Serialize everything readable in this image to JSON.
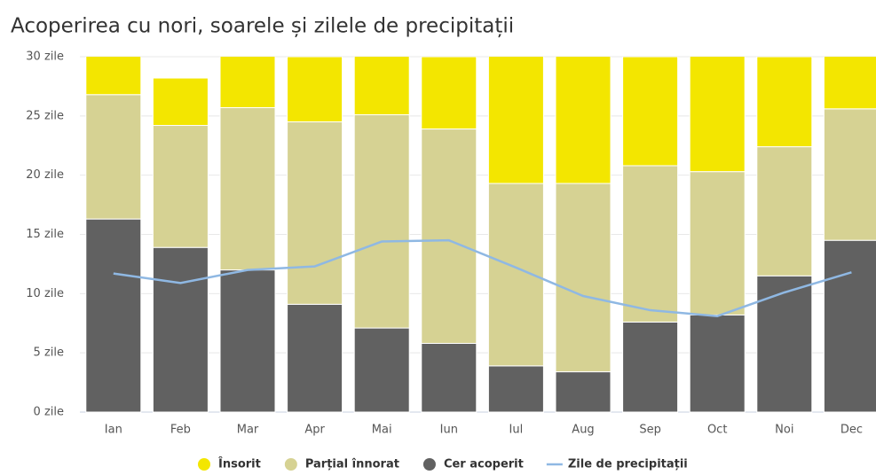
{
  "chart_data": {
    "type": "stacked_bar_line",
    "title": "Acoperirea cu nori, soarele și zilele de precipitații",
    "categories": [
      "Ian",
      "Feb",
      "Mar",
      "Apr",
      "Mai",
      "Iun",
      "Iul",
      "Aug",
      "Sep",
      "Oct",
      "Noi",
      "Dec"
    ],
    "series": [
      {
        "name": "Cer acoperit",
        "color": "#616161",
        "values": [
          16.3,
          13.9,
          12.0,
          9.1,
          7.1,
          5.8,
          3.9,
          3.4,
          7.6,
          8.2,
          11.5,
          14.5
        ]
      },
      {
        "name": "Parțial înnorat",
        "color": "#d6d293",
        "values": [
          10.5,
          10.3,
          13.7,
          15.4,
          18.0,
          18.1,
          15.4,
          15.9,
          13.2,
          12.1,
          10.9,
          11.1
        ]
      },
      {
        "name": "Însorit",
        "color": "#f3e600",
        "values": [
          4.2,
          4.0,
          5.3,
          5.5,
          5.9,
          6.1,
          11.7,
          11.7,
          9.2,
          10.7,
          7.6,
          5.4
        ]
      },
      {
        "name": "Zile de precipitații",
        "color": "#8fb8e3",
        "type": "line",
        "values": [
          11.7,
          10.9,
          12.0,
          12.3,
          14.4,
          14.5,
          12.2,
          9.8,
          8.6,
          8.1,
          10.1,
          11.8
        ]
      }
    ],
    "legend_order": [
      2,
      1,
      0,
      3
    ],
    "ylim": [
      0,
      30
    ],
    "yticks": [
      {
        "value": 0,
        "label": "0 zile"
      },
      {
        "value": 5,
        "label": "5 zile"
      },
      {
        "value": 10,
        "label": "10 zile"
      },
      {
        "value": 15,
        "label": "15 zile"
      },
      {
        "value": 20,
        "label": "20 zile"
      },
      {
        "value": 25,
        "label": "25 zile"
      },
      {
        "value": 30,
        "label": "30 zile"
      }
    ],
    "grid": true
  }
}
